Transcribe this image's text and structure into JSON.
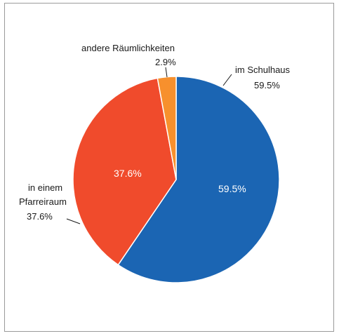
{
  "chart_data": {
    "type": "pie",
    "title": "",
    "slices": [
      {
        "label": "im Schulhaus",
        "value": 59.5,
        "value_label": "59.5%",
        "color": "#1b65b3"
      },
      {
        "label": "in einem Pfarreiraum",
        "label_lines": [
          "in einem",
          "Pfarreiraum"
        ],
        "value": 37.6,
        "value_label": "37.6%",
        "color": "#f04b2c"
      },
      {
        "label": "andere Räumlichkeiten",
        "value": 2.9,
        "value_label": "2.9%",
        "color": "#f7902d"
      }
    ],
    "start_angle_deg": 0,
    "direction": "clockwise",
    "inside_labels": [
      "59.5%",
      "37.6%"
    ]
  }
}
